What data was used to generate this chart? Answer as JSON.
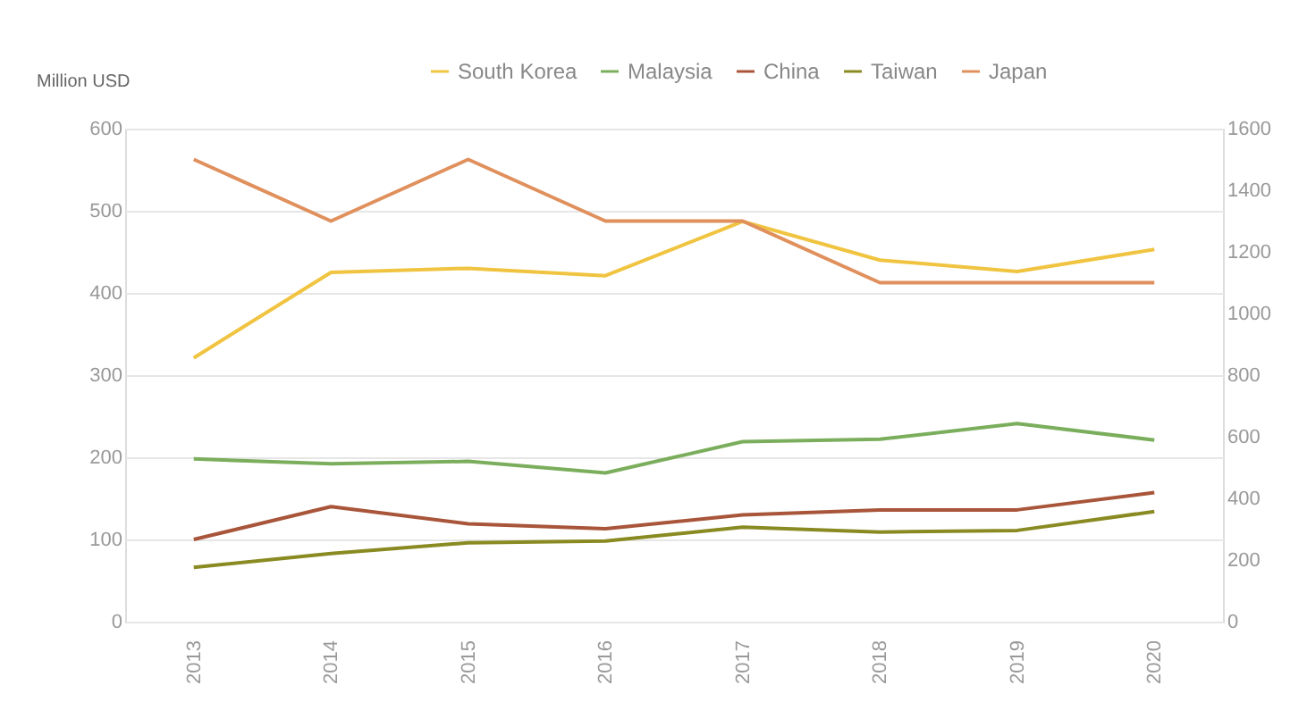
{
  "chart_data": {
    "type": "line",
    "ylabel": "Million USD",
    "categories": [
      "2013",
      "2014",
      "2015",
      "2016",
      "2017",
      "2018",
      "2019",
      "2020"
    ],
    "series": [
      {
        "name": "South Korea",
        "color": "#f0c440",
        "values": [
          321,
          425,
          430,
          421,
          487,
          440,
          426,
          453
        ]
      },
      {
        "name": "Malaysia",
        "color": "#7bae5c",
        "values": [
          198,
          192,
          195,
          181,
          219,
          222,
          241,
          221
        ]
      },
      {
        "name": "China",
        "color": "#a8553a",
        "values": [
          100,
          140,
          119,
          113,
          130,
          136,
          136,
          157
        ]
      },
      {
        "name": "Taiwan",
        "color": "#8a8a22",
        "values": [
          66,
          83,
          96,
          98,
          115,
          109,
          111,
          134
        ]
      },
      {
        "name": "Japan",
        "color": "#e0905c",
        "axis": "y2",
        "values": [
          1500,
          1300,
          1500,
          1300,
          1300,
          1100,
          1100,
          1100
        ]
      }
    ],
    "ylim": [
      0,
      600
    ],
    "yticks": [
      0,
      100,
      200,
      300,
      400,
      500,
      600
    ],
    "y2lim": [
      0,
      1600
    ],
    "y2ticks": [
      0,
      200,
      400,
      600,
      800,
      1000,
      1200,
      1400,
      1600
    ],
    "grid": "y",
    "legend": "top",
    "marker": "none",
    "line_style": "solid"
  }
}
